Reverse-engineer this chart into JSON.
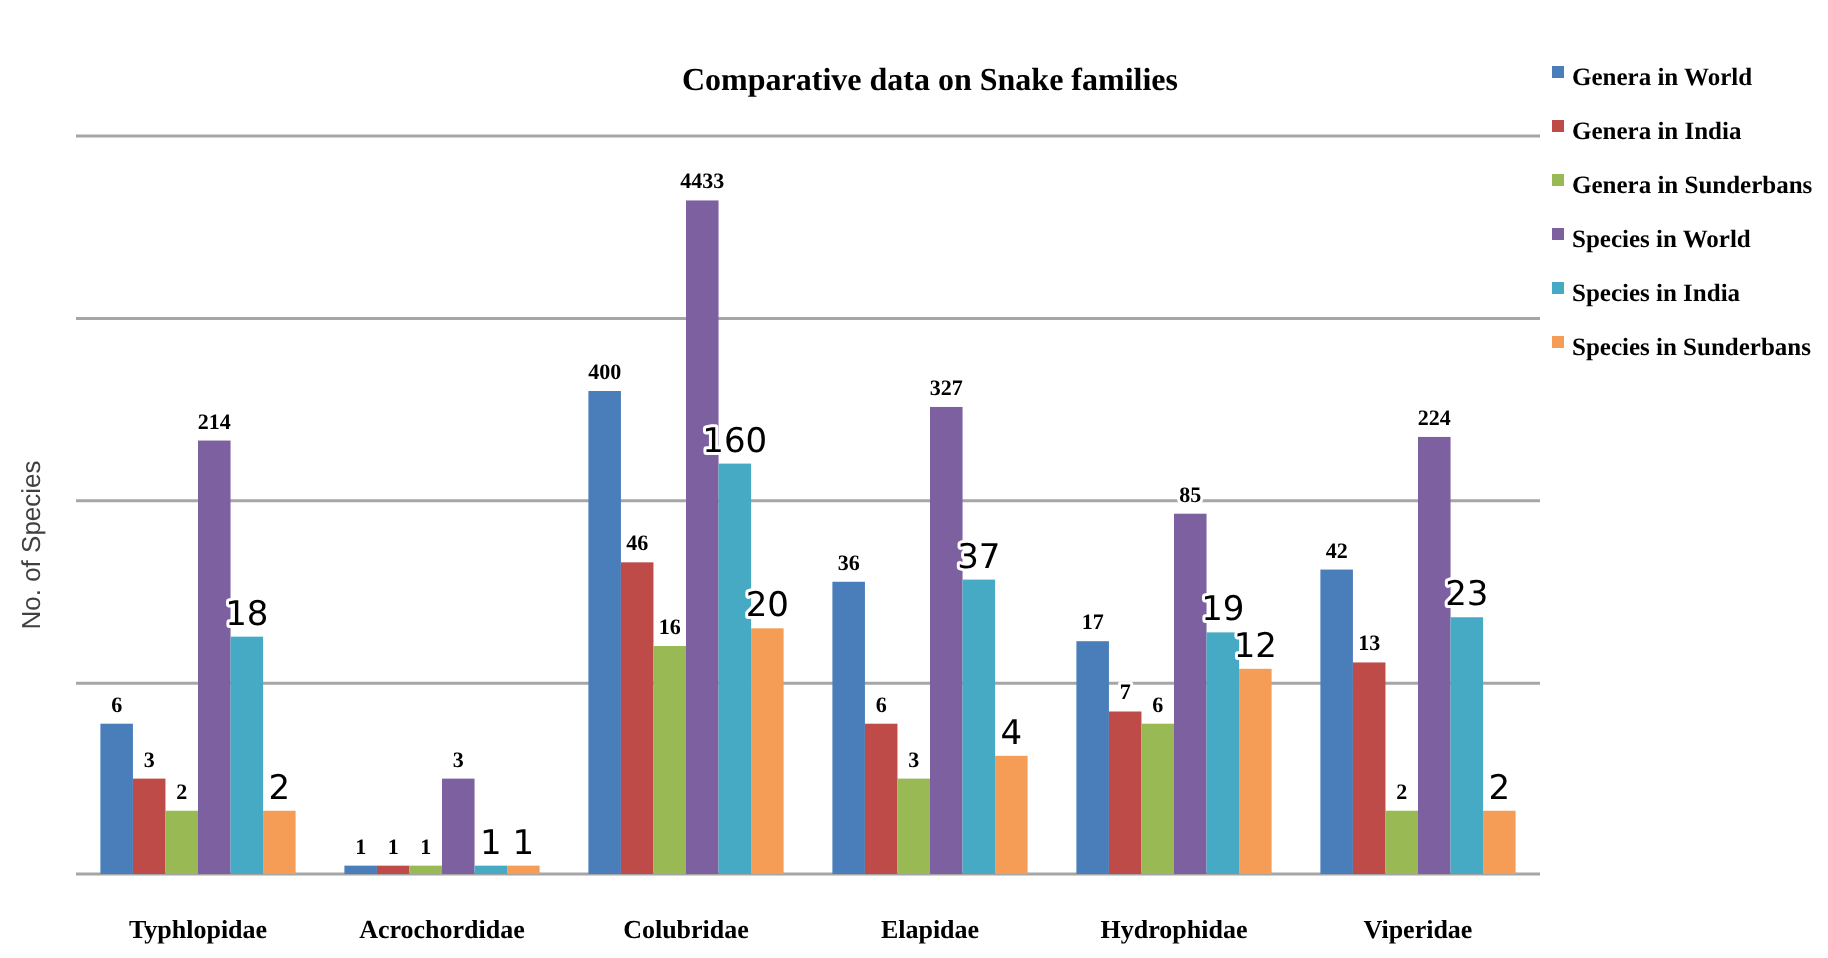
{
  "chart_data": {
    "type": "bar",
    "title": "Comparative data on Snake families",
    "ylabel": "No. of Species",
    "categories": [
      "Typhlopidae",
      "Acrochordidae",
      "Colubridae",
      "Elapidae",
      "Hydrophidae",
      "Viperidae"
    ],
    "series": [
      {
        "name": "Genera in World",
        "color": "#4a7ebb",
        "values": [
          6,
          1,
          400,
          36,
          17,
          42
        ]
      },
      {
        "name": "Genera in India",
        "color": "#be4b48",
        "values": [
          3,
          1,
          46,
          6,
          7,
          13
        ]
      },
      {
        "name": "Genera in Sunderbans",
        "color": "#98b954",
        "values": [
          2,
          1,
          16,
          3,
          6,
          2
        ]
      },
      {
        "name": "Species in World",
        "color": "#7d60a0",
        "values": [
          214,
          3,
          4433,
          327,
          85,
          224
        ]
      },
      {
        "name": "Species in India",
        "color": "#46aac5",
        "values": [
          18,
          1,
          160,
          37,
          19,
          23
        ]
      },
      {
        "name": "Species in Sunderbans",
        "color": "#f59d56",
        "values": [
          2,
          1,
          20,
          4,
          12,
          2
        ]
      }
    ],
    "log": true,
    "ylim": [
      0.9,
      10000
    ],
    "yticks": [
      {
        "value": 10,
        "label": null
      },
      {
        "value": 100,
        "label": null
      },
      {
        "value": 1000,
        "label": null
      },
      {
        "value": 10000,
        "label": null
      }
    ],
    "tick_labels": "x",
    "grid": "y",
    "legend": "top right",
    "data_labels": true
  }
}
